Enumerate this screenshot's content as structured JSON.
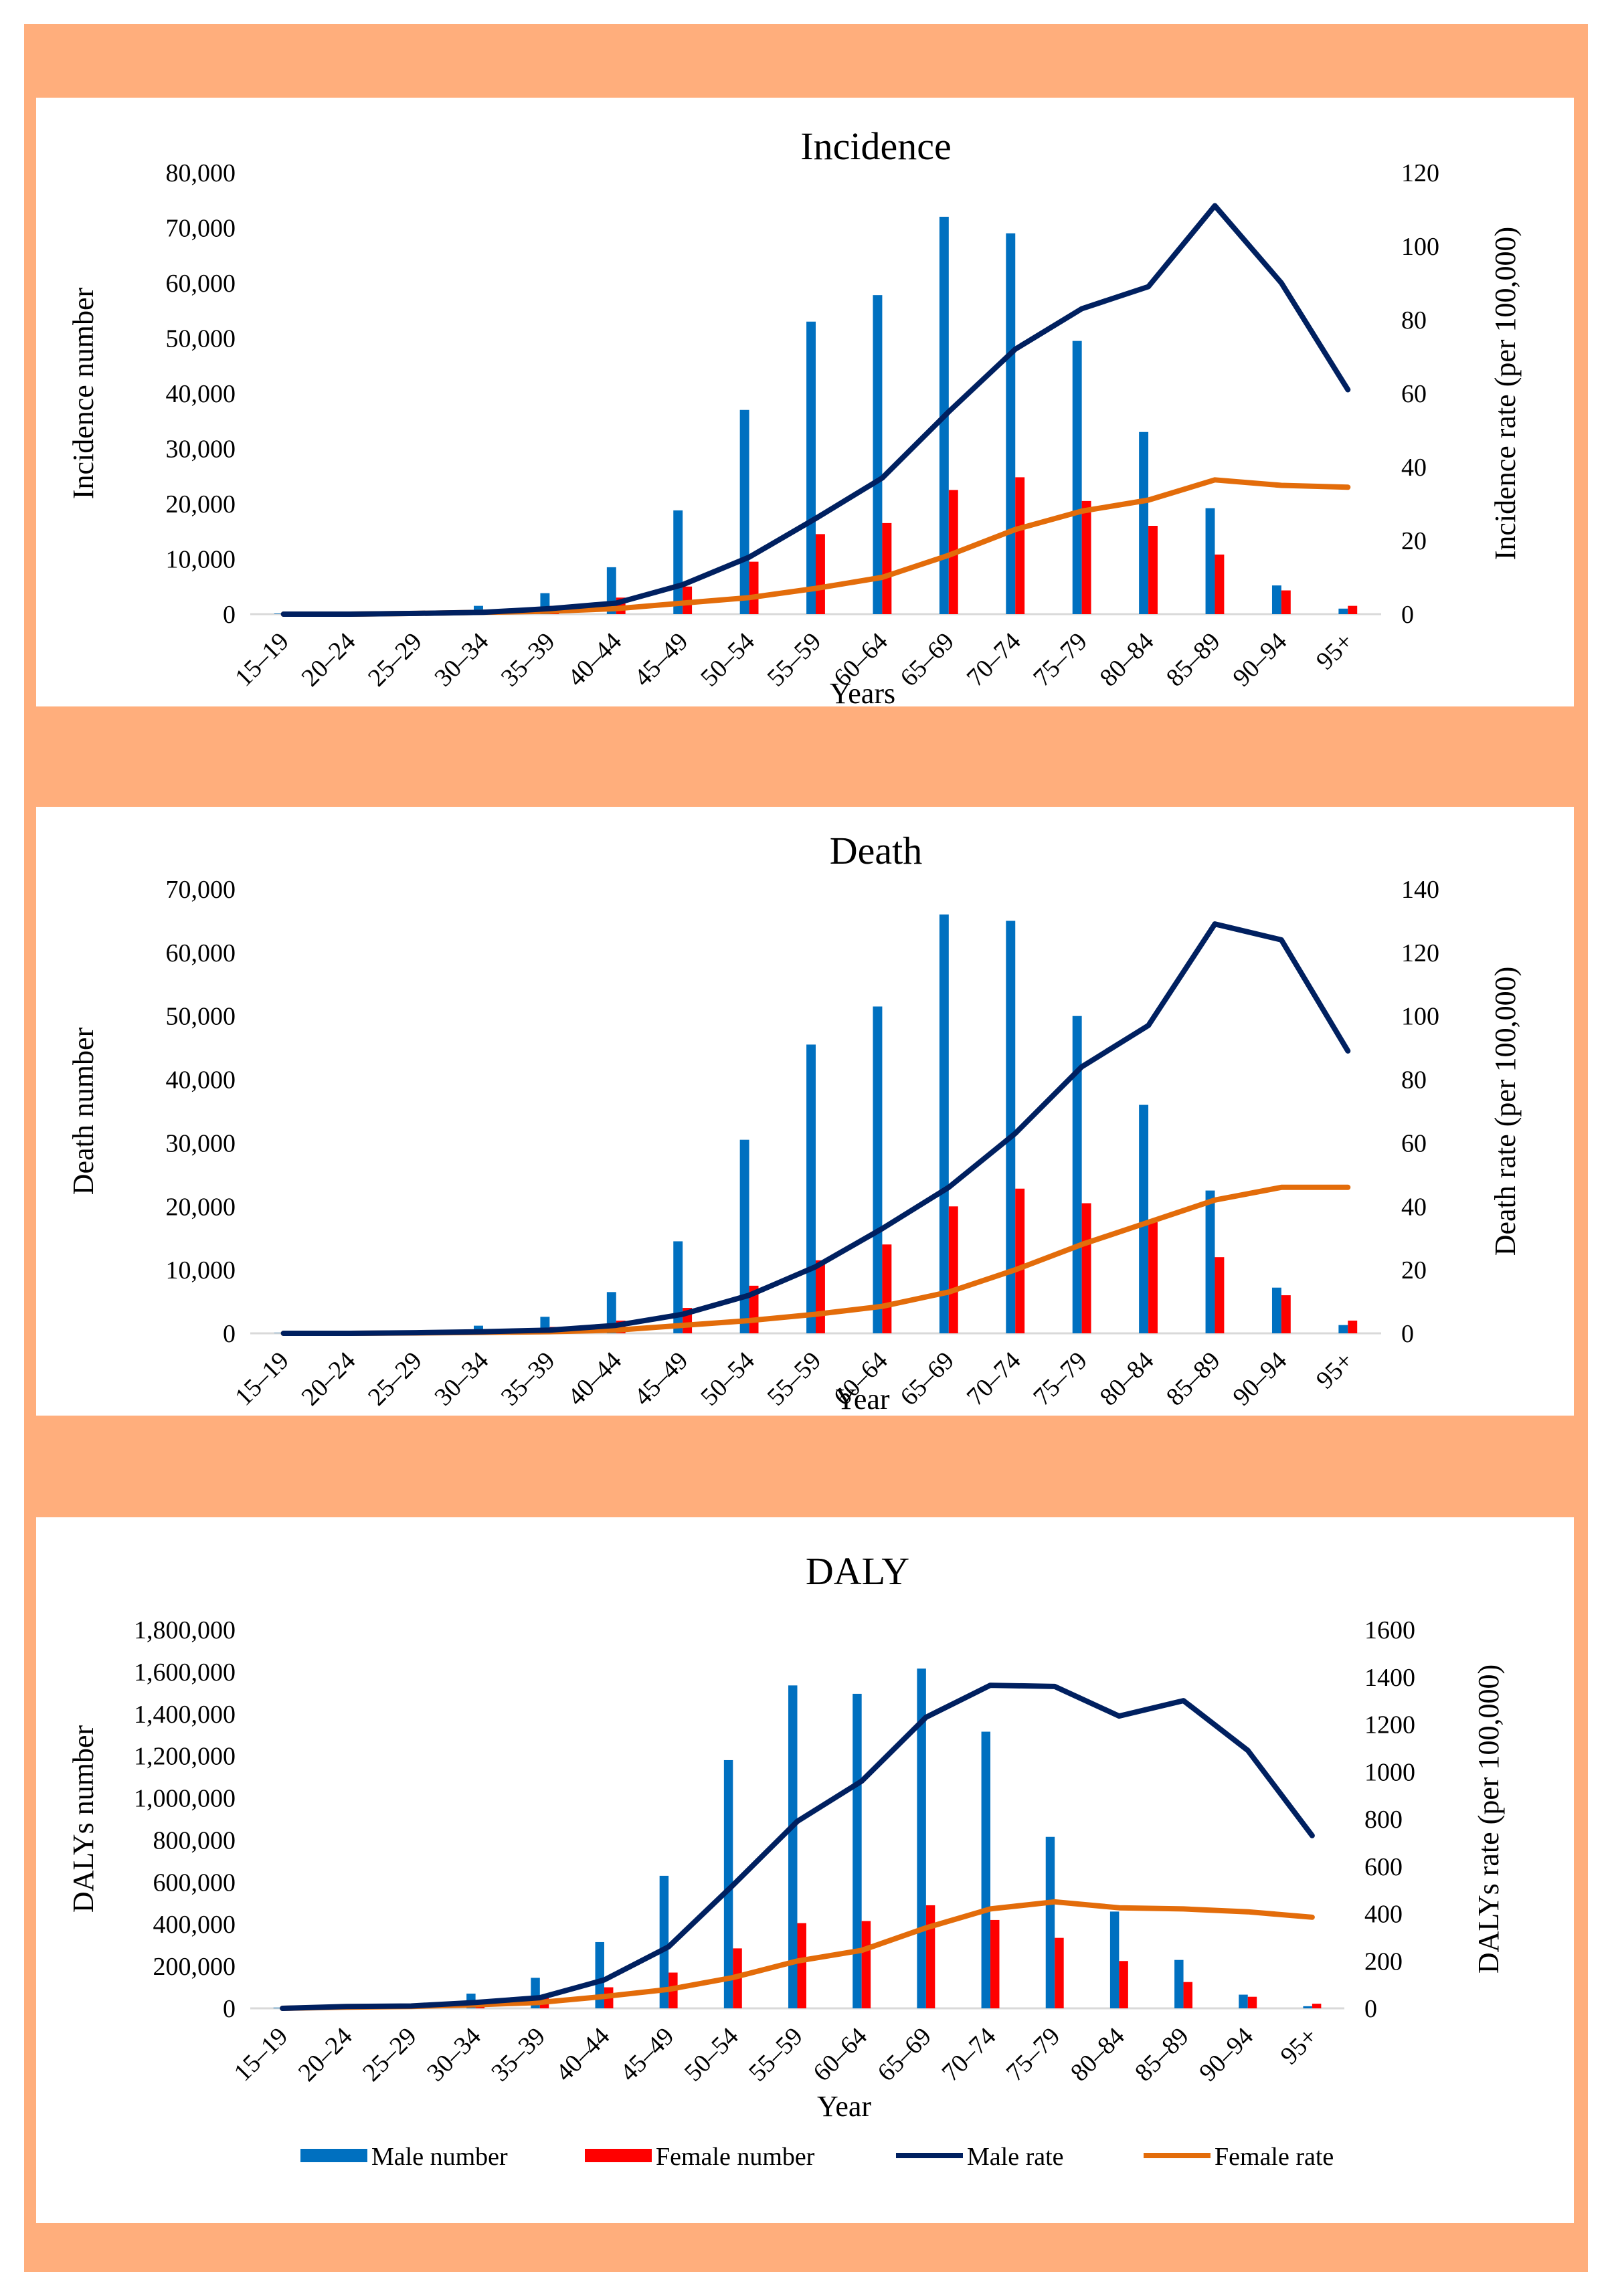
{
  "colors": {
    "background": "#FFAE7C",
    "male_number": "#0070C0",
    "female_number": "#FF0000",
    "male_rate": "#002060",
    "female_rate": "#E36C0A"
  },
  "legend": {
    "male_number": "Male number",
    "female_number": "Female number",
    "male_rate": "Male rate",
    "female_rate": "Female rate"
  },
  "chart_data": [
    {
      "type": "bar+line",
      "title": "Incidence",
      "xlabel": "Years",
      "ylabel": "Incidence number",
      "y2label": "Incidence rate (per 100,000)",
      "ylim": [
        0,
        80000
      ],
      "y2lim": [
        0,
        120
      ],
      "yticks": [
        "0",
        "10,000",
        "20,000",
        "30,000",
        "40,000",
        "50,000",
        "60,000",
        "70,000",
        "80,000"
      ],
      "y2ticks": [
        "0",
        "20",
        "40",
        "60",
        "80",
        "100",
        "120"
      ],
      "categories": [
        "15–19",
        "20–24",
        "25–29",
        "30–34",
        "35–39",
        "40–44",
        "45–49",
        "50–54",
        "55–59",
        "60–64",
        "65–69",
        "70–74",
        "75–79",
        "80–84",
        "85–89",
        "90–94",
        "95+"
      ],
      "series": [
        {
          "name": "Male number",
          "kind": "bar",
          "values": [
            100,
            200,
            400,
            1500,
            3800,
            8500,
            18800,
            37000,
            53000,
            57800,
            72000,
            69000,
            49500,
            33000,
            19200,
            5200,
            1000
          ]
        },
        {
          "name": "Female number",
          "kind": "bar",
          "values": [
            80,
            150,
            300,
            800,
            1500,
            3000,
            5000,
            9500,
            14500,
            16500,
            22500,
            24800,
            20500,
            16000,
            10800,
            4300,
            1500
          ]
        },
        {
          "name": "Male rate",
          "kind": "line",
          "axis": "right",
          "values": [
            0,
            0,
            0.2,
            0.5,
            1.5,
            3,
            8,
            15.5,
            26,
            37,
            55,
            72,
            83,
            89,
            111,
            90,
            61
          ]
        },
        {
          "name": "Female rate",
          "kind": "line",
          "axis": "right",
          "values": [
            0,
            0,
            0.2,
            0.5,
            0.8,
            1.5,
            3,
            4.5,
            7,
            10,
            16,
            23,
            28,
            31,
            36.5,
            35,
            34.5
          ]
        }
      ]
    },
    {
      "type": "bar+line",
      "title": "Death",
      "xlabel": "Year",
      "ylabel": "Death number",
      "y2label": "Death rate (per 100,000)",
      "ylim": [
        0,
        70000
      ],
      "y2lim": [
        0,
        140
      ],
      "yticks": [
        "0",
        "10,000",
        "20,000",
        "30,000",
        "40,000",
        "50,000",
        "60,000",
        "70,000"
      ],
      "y2ticks": [
        "0",
        "20",
        "40",
        "60",
        "80",
        "100",
        "120",
        "140"
      ],
      "categories": [
        "15–19",
        "20–24",
        "25–29",
        "30–34",
        "35–39",
        "40–44",
        "45–49",
        "50–54",
        "55–59",
        "60–64",
        "65–69",
        "70–74",
        "75–79",
        "80–84",
        "85–89",
        "90–94",
        "95+"
      ],
      "series": [
        {
          "name": "Male number",
          "kind": "bar",
          "values": [
            50,
            100,
            300,
            1200,
            2600,
            6500,
            14500,
            30500,
            45500,
            51500,
            66000,
            65000,
            50000,
            36000,
            22500,
            7200,
            1300
          ]
        },
        {
          "name": "Female number",
          "kind": "bar",
          "values": [
            40,
            80,
            200,
            500,
            1000,
            2000,
            4000,
            7500,
            11500,
            14000,
            20000,
            22800,
            20500,
            17500,
            12000,
            6000,
            2000
          ]
        },
        {
          "name": "Male rate",
          "kind": "line",
          "axis": "right",
          "values": [
            0,
            0,
            0.2,
            0.5,
            1,
            2.5,
            6,
            12,
            21,
            33,
            46,
            63,
            84,
            97,
            129,
            124,
            89
          ]
        },
        {
          "name": "Female rate",
          "kind": "line",
          "axis": "right",
          "values": [
            0,
            0,
            0.1,
            0.3,
            0.5,
            1,
            2.5,
            4,
            6,
            8.5,
            13,
            20,
            28,
            35,
            42,
            46,
            46
          ]
        }
      ]
    },
    {
      "type": "bar+line",
      "title": "DALY",
      "xlabel": "Year",
      "ylabel": "DALYs number",
      "y2label": "DALYs rate (per 100,000)",
      "ylim": [
        0,
        1800000
      ],
      "y2lim": [
        0,
        1600
      ],
      "yticks": [
        "0",
        "200,000",
        "400,000",
        "600,000",
        "800,000",
        "1,000,000",
        "1,200,000",
        "1,400,000",
        "1,600,000",
        "1,800,000"
      ],
      "y2ticks": [
        "0",
        "200",
        "400",
        "600",
        "800",
        "1000",
        "1200",
        "1400",
        "1600"
      ],
      "categories": [
        "15–19",
        "20–24",
        "25–29",
        "30–34",
        "35–39",
        "40–44",
        "45–49",
        "50–54",
        "55–59",
        "60–64",
        "65–69",
        "70–74",
        "75–79",
        "80–84",
        "85–89",
        "90–94",
        "95+"
      ],
      "series": [
        {
          "name": "Male number",
          "kind": "bar",
          "values": [
            3000,
            8000,
            20000,
            70000,
            145000,
            315000,
            630000,
            1180000,
            1535000,
            1495000,
            1615000,
            1315000,
            815000,
            460000,
            230000,
            65000,
            10000
          ]
        },
        {
          "name": "Female number",
          "kind": "bar",
          "values": [
            2000,
            6000,
            12000,
            30000,
            60000,
            100000,
            170000,
            285000,
            405000,
            415000,
            490000,
            420000,
            335000,
            225000,
            125000,
            55000,
            22000
          ]
        },
        {
          "name": "Male rate",
          "kind": "line",
          "axis": "right",
          "values": [
            0,
            8,
            10,
            25,
            45,
            120,
            260,
            520,
            790,
            960,
            1230,
            1365,
            1360,
            1235,
            1300,
            1090,
            730
          ]
        },
        {
          "name": "Female rate",
          "kind": "line",
          "axis": "right",
          "values": [
            0,
            5,
            8,
            15,
            25,
            50,
            80,
            130,
            200,
            245,
            340,
            420,
            450,
            425,
            420,
            408,
            385
          ]
        }
      ]
    }
  ]
}
